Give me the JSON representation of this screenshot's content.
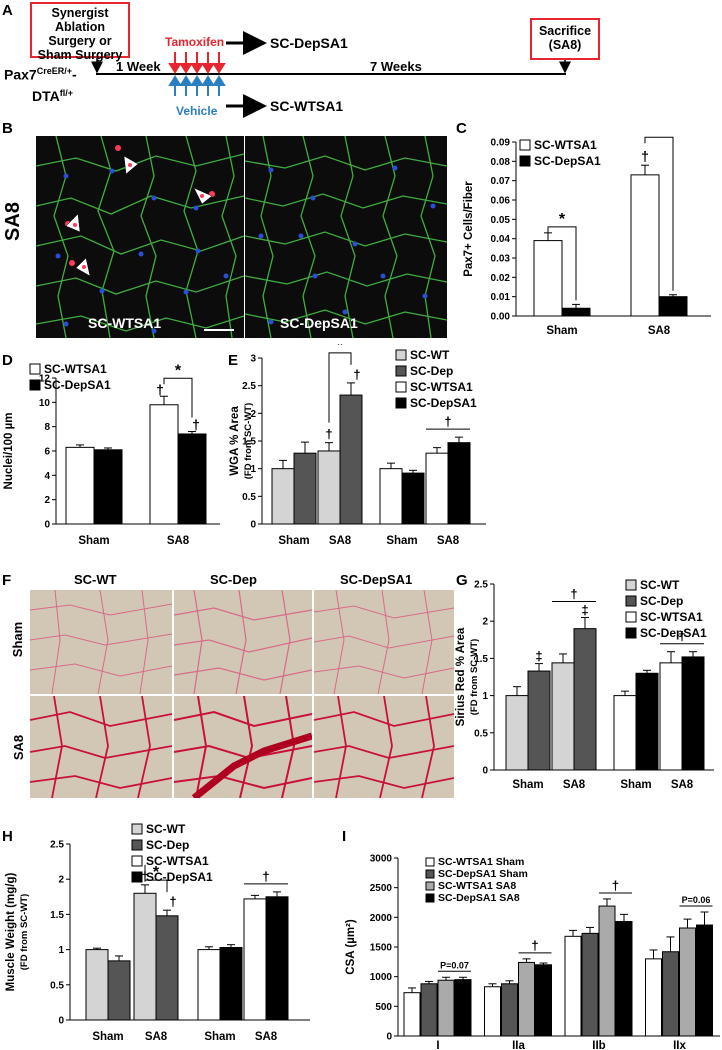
{
  "panel_labels": {
    "A": "A",
    "B": "B",
    "C": "C",
    "D": "D",
    "E": "E",
    "F": "F",
    "G": "G",
    "H": "H",
    "I": "I"
  },
  "timeline": {
    "surgery_box": "Synergist Ablation Surgery or Sham Surgery",
    "mouse_main": "Pax7",
    "mouse_sup1": "CreER/+",
    "mouse_dash": "-",
    "mouse_dta": "DTA",
    "mouse_sup2": "fl/+",
    "week1": "1 Week",
    "weeks7": "7 Weeks",
    "tamoxifen": "Tamoxifen",
    "vehicle": "Vehicle",
    "depsa1": "SC-DepSA1",
    "wtsa1": "SC-WTSA1",
    "sacrifice": "Sacrifice (SA8)",
    "colors": {
      "tamoxifen": "#e8242e",
      "vehicle": "#2a7fc1",
      "box": "#e8242e"
    }
  },
  "panel_b": {
    "row_label": "SA8",
    "left_label": "SC-WTSA1",
    "right_label": "SC-DepSA1"
  },
  "panel_f": {
    "col_labels": [
      "SC-WT",
      "SC-Dep",
      "SC-DepSA1"
    ],
    "row_labels": [
      "Sham",
      "SA8"
    ]
  },
  "chart_data": [
    {
      "id": "C",
      "type": "bar",
      "ylabel": "Pax7+ Cells/Fiber",
      "ylim": [
        0,
        0.09
      ],
      "yticks": [
        "0.00",
        "0.01",
        "0.02",
        "0.03",
        "0.04",
        "0.05",
        "0.06",
        "0.07",
        "0.08",
        "0.09"
      ],
      "categories": [
        "Sham",
        "SA8"
      ],
      "series": [
        {
          "name": "SC-WTSA1",
          "values": [
            0.039,
            0.073
          ],
          "err": [
            0.004,
            0.005
          ],
          "color": "#ffffff"
        },
        {
          "name": "SC-DepSA1",
          "values": [
            0.004,
            0.01
          ],
          "err": [
            0.002,
            0.001
          ],
          "color": "#000000"
        }
      ],
      "annotations": [
        "*",
        "*",
        "†"
      ]
    },
    {
      "id": "D",
      "type": "bar",
      "ylabel": "Nuclei/100 µm",
      "ylim": [
        0,
        12
      ],
      "yticks": [
        "0",
        "2",
        "4",
        "6",
        "8",
        "10",
        "12"
      ],
      "categories": [
        "Sham",
        "SA8"
      ],
      "series": [
        {
          "name": "SC-WTSA1",
          "values": [
            6.3,
            9.8
          ],
          "err": [
            0.2,
            0.7
          ],
          "color": "#ffffff"
        },
        {
          "name": "SC-DepSA1",
          "values": [
            6.1,
            7.4
          ],
          "err": [
            0.15,
            0.2
          ],
          "color": "#000000"
        }
      ],
      "annotations": [
        "*",
        "†",
        "†"
      ]
    },
    {
      "id": "E",
      "type": "bar",
      "ylabel": "WGA % Area",
      "ylabel2": "(FD from SC-WT)",
      "ylim": [
        0,
        3
      ],
      "yticks": [
        "0",
        "0.5",
        "1",
        "1.5",
        "2",
        "2.5",
        "3"
      ],
      "categories": [
        "Sham",
        "SA8",
        "Sham",
        "SA8"
      ],
      "series": [
        {
          "name": "SC-WT",
          "values": [
            1.0,
            1.32,
            null,
            null
          ],
          "err": [
            0.15,
            0.15,
            null,
            null
          ],
          "color": "#d4d4d4"
        },
        {
          "name": "SC-Dep",
          "values": [
            1.28,
            2.33,
            null,
            null
          ],
          "err": [
            0.2,
            0.22,
            null,
            null
          ],
          "color": "#555555"
        },
        {
          "name": "SC-WTSA1",
          "values": [
            null,
            null,
            1.0,
            1.28
          ],
          "err": [
            null,
            null,
            0.1,
            0.1
          ],
          "color": "#ffffff"
        },
        {
          "name": "SC-DepSA1",
          "values": [
            null,
            null,
            0.92,
            1.47
          ],
          "err": [
            null,
            null,
            0.05,
            0.1
          ],
          "color": "#000000"
        }
      ],
      "annotations": [
        "*",
        "†",
        "†",
        "†"
      ]
    },
    {
      "id": "G",
      "type": "bar",
      "ylabel": "Sirius Red % Area",
      "ylabel2": "(FD from SC-WT)",
      "ylim": [
        0,
        2.5
      ],
      "yticks": [
        "0",
        "0.5",
        "1",
        "1.5",
        "2",
        "2.5"
      ],
      "categories": [
        "Sham",
        "SA8",
        "Sham",
        "SA8"
      ],
      "series": [
        {
          "name": "SC-WT",
          "values": [
            1.0,
            1.44,
            null,
            null
          ],
          "err": [
            0.12,
            0.12,
            null,
            null
          ],
          "color": "#d4d4d4"
        },
        {
          "name": "SC-Dep",
          "values": [
            1.33,
            1.9,
            null,
            null
          ],
          "err": [
            0.1,
            0.15,
            null,
            null
          ],
          "color": "#555555"
        },
        {
          "name": "SC-WTSA1",
          "values": [
            null,
            null,
            1.0,
            1.44
          ],
          "err": [
            null,
            null,
            0.06,
            0.15
          ],
          "color": "#ffffff"
        },
        {
          "name": "SC-DepSA1",
          "values": [
            null,
            null,
            1.3,
            1.52
          ],
          "err": [
            null,
            null,
            0.04,
            0.07
          ],
          "color": "#000000"
        }
      ],
      "annotations": [
        "‡",
        "‡",
        "†",
        "†"
      ]
    },
    {
      "id": "H",
      "type": "bar",
      "ylabel": "Muscle Weight (mg/g)",
      "ylabel2": "(FD from SC-WT)",
      "ylim": [
        0,
        2.5
      ],
      "yticks": [
        "0",
        "0.5",
        "1",
        "1.5",
        "2",
        "2.5"
      ],
      "categories": [
        "Sham",
        "SA8",
        "Sham",
        "SA8"
      ],
      "series": [
        {
          "name": "SC-WT",
          "values": [
            1.0,
            1.8,
            null,
            null
          ],
          "err": [
            0.02,
            0.12,
            null,
            null
          ],
          "color": "#d4d4d4"
        },
        {
          "name": "SC-Dep",
          "values": [
            0.84,
            1.48,
            null,
            null
          ],
          "err": [
            0.07,
            0.08,
            null,
            null
          ],
          "color": "#555555"
        },
        {
          "name": "SC-WTSA1",
          "values": [
            null,
            null,
            1.0,
            1.72
          ],
          "err": [
            null,
            null,
            0.04,
            0.05
          ],
          "color": "#ffffff"
        },
        {
          "name": "SC-DepSA1",
          "values": [
            null,
            null,
            1.03,
            1.75
          ],
          "err": [
            null,
            null,
            0.04,
            0.07
          ],
          "color": "#000000"
        }
      ],
      "annotations": [
        "*",
        "†",
        "†",
        "†"
      ]
    },
    {
      "id": "I",
      "type": "bar",
      "ylabel": "CSA (µm²)",
      "ylim": [
        0,
        3000
      ],
      "yticks": [
        "0",
        "500",
        "1000",
        "1500",
        "2000",
        "2500",
        "3000"
      ],
      "categories": [
        "I",
        "IIa",
        "IIb",
        "IIx"
      ],
      "series": [
        {
          "name": "SC-WTSA1 Sham",
          "values": [
            730,
            830,
            1680,
            1300
          ],
          "err": [
            80,
            50,
            100,
            150
          ],
          "color": "#ffffff"
        },
        {
          "name": "SC-DepSA1 Sham",
          "values": [
            880,
            880,
            1730,
            1420
          ],
          "err": [
            40,
            50,
            100,
            250
          ],
          "color": "#555555"
        },
        {
          "name": "SC-WTSA1 SA8",
          "values": [
            940,
            1240,
            2190,
            1820
          ],
          "err": [
            50,
            60,
            120,
            150
          ],
          "color": "#aaaaaa"
        },
        {
          "name": "SC-DepSA1 SA8",
          "values": [
            950,
            1200,
            1930,
            1870
          ],
          "err": [
            40,
            30,
            120,
            220
          ],
          "color": "#000000"
        }
      ],
      "annotations": [
        "P=0.07",
        "†",
        "†",
        "P=0.06"
      ]
    }
  ]
}
